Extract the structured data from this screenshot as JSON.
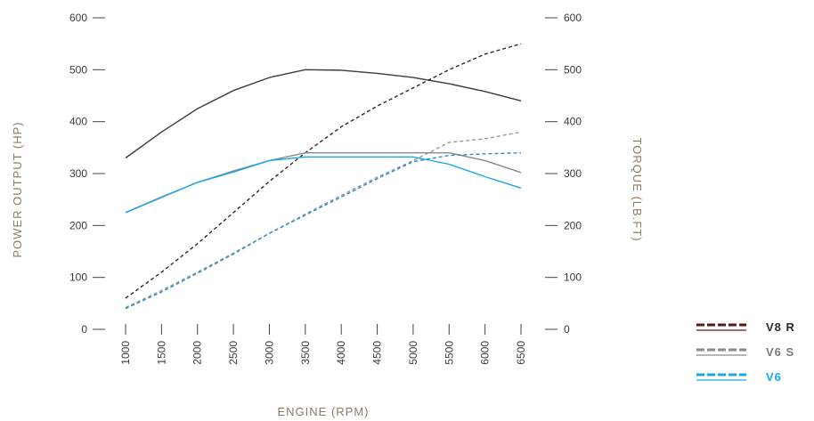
{
  "chart_data": {
    "type": "line",
    "xlabel": "ENGINE (RPM)",
    "ylabel_left": "POWER OUTPUT (HP)",
    "ylabel_right": "TORQUE (LB.FT)",
    "x": [
      1000,
      1500,
      2000,
      2500,
      3000,
      3500,
      4000,
      4500,
      5000,
      5500,
      6000,
      6500
    ],
    "x_tick_labels": [
      "1000",
      "1500",
      "2000",
      "2500",
      "3000",
      "3500",
      "4000",
      "4500",
      "5000",
      "5500",
      "6000",
      "6500"
    ],
    "y_ticks": [
      0,
      100,
      200,
      300,
      400,
      500,
      600
    ],
    "y_tick_labels": [
      "0",
      "100",
      "200",
      "300",
      "400",
      "500",
      "600"
    ],
    "ylim": [
      0,
      600
    ],
    "xlim": [
      1000,
      6500
    ],
    "grid": false,
    "legend_position": "bottom-right",
    "legend": [
      {
        "label": "V8 R",
        "color": "#5b1a14",
        "text_color": "#2a2a2a"
      },
      {
        "label": "V6 S",
        "color": "#8a8a8a",
        "text_color": "#7a7a7a"
      },
      {
        "label": "V6",
        "color": "#1aa7e8",
        "text_color": "#1aa7e8"
      }
    ],
    "series": [
      {
        "model": "V8 R",
        "measure": "power",
        "axis": "left",
        "style": "solid",
        "color": "#3b3b3b",
        "values": [
          330,
          380,
          425,
          460,
          485,
          500,
          499,
          493,
          485,
          473,
          458,
          440
        ]
      },
      {
        "model": "V8 R",
        "measure": "torque",
        "axis": "right",
        "style": "dashed",
        "color": "#2b2b2b",
        "values": [
          60,
          110,
          165,
          225,
          285,
          340,
          390,
          430,
          465,
          500,
          530,
          550
        ]
      },
      {
        "model": "V6 S",
        "measure": "power",
        "axis": "left",
        "style": "solid",
        "color": "#8a8a8a",
        "values": [
          225,
          255,
          283,
          305,
          325,
          340,
          340,
          340,
          340,
          340,
          325,
          302
        ]
      },
      {
        "model": "V6 S",
        "measure": "torque",
        "axis": "right",
        "style": "dashed",
        "color": "#9a9a9a",
        "values": [
          42,
          75,
          110,
          147,
          185,
          222,
          258,
          293,
          325,
          360,
          367,
          380
        ]
      },
      {
        "model": "V6",
        "measure": "power",
        "axis": "left",
        "style": "solid",
        "color": "#1aa7e8",
        "values": [
          225,
          254,
          283,
          303,
          325,
          332,
          332,
          332,
          332,
          318,
          294,
          272
        ]
      },
      {
        "model": "V6",
        "measure": "torque",
        "axis": "right",
        "style": "dashed",
        "color": "#2a8fc6",
        "values": [
          40,
          72,
          108,
          145,
          185,
          220,
          255,
          290,
          323,
          335,
          338,
          340
        ]
      }
    ]
  },
  "colors": {
    "tick_text": "#3a3a3a",
    "axis_title": "#8c7a63",
    "tick_mark": "#444444"
  }
}
